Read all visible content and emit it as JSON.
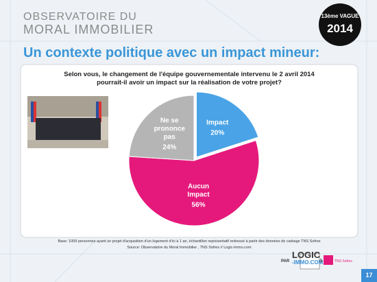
{
  "header": {
    "brand_line1": "OBSERVATOIRE DU",
    "brand_line2": "MORAL IMMOBILIER",
    "badge_line1": "13ème VAGUE",
    "badge_line2": "2014"
  },
  "slide_title": "Un contexte politique avec un impact mineur:",
  "question": [
    "Selon vous, le changement de l'équipe gouvernementale intervenu le 2 avril 2014",
    "pourrait-il avoir un impact sur la réalisation de votre projet?"
  ],
  "chart_data": {
    "type": "pie",
    "categories": [
      "Impact",
      "Aucun Impact",
      "Ne se prononce pas"
    ],
    "values": [
      20,
      56,
      24
    ],
    "value_labels": [
      "20%",
      "56%",
      "24%"
    ],
    "colors": [
      "#4aa3e6",
      "#e5197b",
      "#b5b5b5"
    ]
  },
  "footer": {
    "base": "Base: 1009 personnes ayant un projet d'acquisition d'un logement d'ici à 1 an, échantillon représentatif redressé à partir des données de cadrage TNS Sofres",
    "source": "Source: Observatoire du Moral Immobilier , TNS Sofres // Logic-immo.com",
    "par": "PAR",
    "logo1": "LOGIC",
    "logo2": "-IMMO.COM",
    "and": "&",
    "logo3": "TNS Sofres",
    "page": "17"
  }
}
